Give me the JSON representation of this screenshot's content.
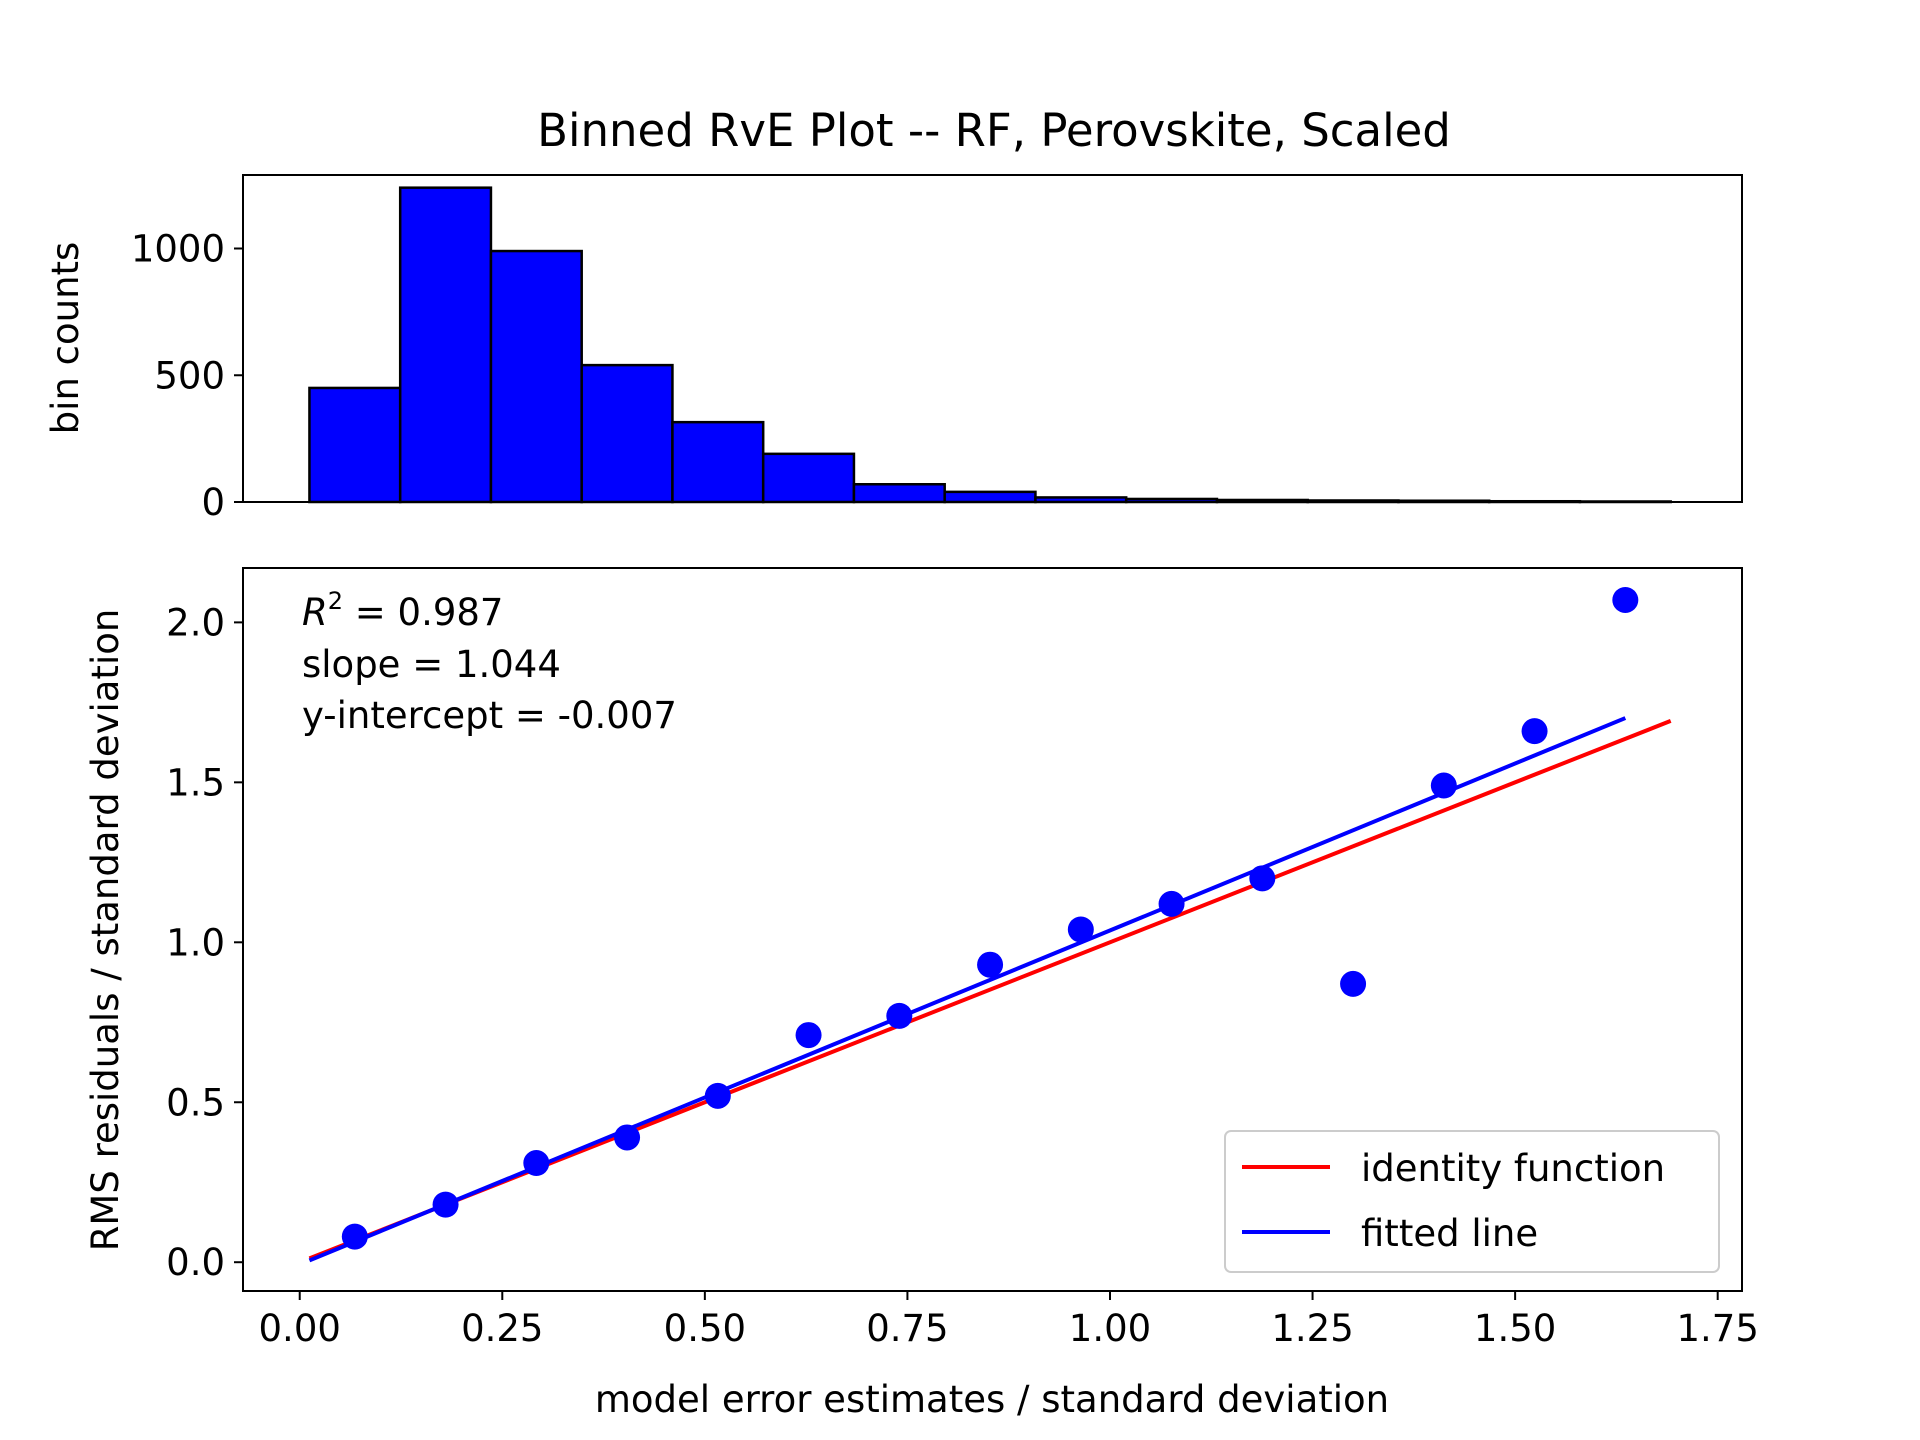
{
  "figure_title": "Binned RvE Plot -- RF, Perovskite, Scaled",
  "stats": {
    "r2_label": "R",
    "r2_superscript": "2",
    "r2_value": " = 0.987",
    "slope": "slope = 1.044",
    "intercept": "y-intercept = -0.007"
  },
  "chart_data": [
    {
      "type": "bar",
      "role": "histogram",
      "title": "Binned RvE Plot -- RF, Perovskite, Scaled",
      "xlabel": "",
      "ylabel": "bin counts",
      "bin_width": 0.112,
      "bin_lefts": [
        0.012,
        0.124,
        0.236,
        0.348,
        0.46,
        0.572,
        0.684,
        0.796,
        0.908,
        1.02,
        1.132,
        1.244,
        1.356,
        1.468,
        1.58
      ],
      "values": [
        450,
        1240,
        990,
        540,
        315,
        190,
        70,
        40,
        18,
        12,
        8,
        6,
        5,
        3,
        2
      ],
      "xlim": [
        -0.07,
        1.78
      ],
      "ylim": [
        0,
        1290
      ],
      "yticks": [
        0,
        500,
        1000
      ],
      "ytick_labels": [
        "0",
        "500",
        "1000"
      ],
      "bar_color": "#0000ff",
      "edge_color": "#000000"
    },
    {
      "type": "scatter",
      "xlabel": "model error estimates / standard deviation",
      "ylabel": "RMS residuals / standard deviation",
      "xlim": [
        -0.07,
        1.78
      ],
      "ylim": [
        -0.09,
        2.17
      ],
      "xticks": [
        0.0,
        0.25,
        0.5,
        0.75,
        1.0,
        1.25,
        1.5,
        1.75
      ],
      "xtick_labels": [
        "0.00",
        "0.25",
        "0.50",
        "0.75",
        "1.00",
        "1.25",
        "1.50",
        "1.75"
      ],
      "yticks": [
        0.0,
        0.5,
        1.0,
        1.5,
        2.0
      ],
      "ytick_labels": [
        "0.0",
        "0.5",
        "1.0",
        "1.5",
        "2.0"
      ],
      "points": {
        "x": [
          0.068,
          0.18,
          0.292,
          0.404,
          0.516,
          0.628,
          0.74,
          0.852,
          0.964,
          1.076,
          1.188,
          1.3,
          1.412,
          1.524,
          1.636
        ],
        "y": [
          0.08,
          0.18,
          0.31,
          0.39,
          0.52,
          0.71,
          0.77,
          0.93,
          1.04,
          1.12,
          1.2,
          0.87,
          1.49,
          1.66,
          2.07
        ],
        "color": "#0000ff"
      },
      "series": [
        {
          "name": "identity function",
          "kind": "line",
          "color": "#ff0000",
          "x": [
            0.012,
            1.692
          ],
          "y": [
            0.012,
            1.692
          ]
        },
        {
          "name": "fitted line",
          "kind": "line",
          "color": "#0000ff",
          "x": [
            0.012,
            1.636
          ],
          "y": [
            0.0055,
            1.7009
          ]
        }
      ],
      "legend": {
        "location": "lower-right",
        "entries": [
          "identity function",
          "fitted line"
        ]
      },
      "grid": false
    }
  ]
}
